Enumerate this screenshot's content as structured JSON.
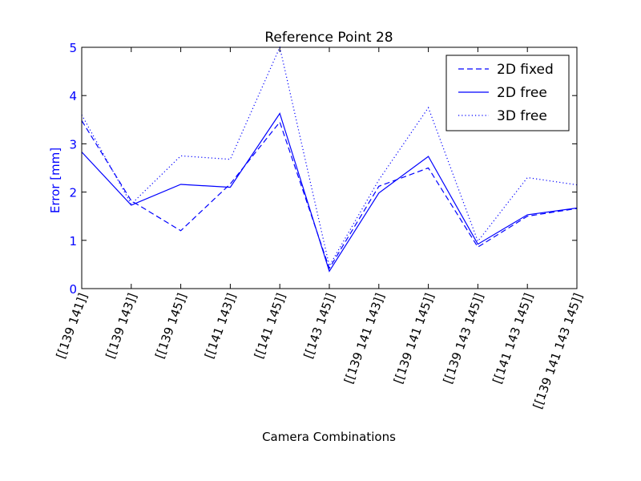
{
  "chart_data": {
    "type": "line",
    "title": "Reference Point 28",
    "xlabel": "Camera Combinations",
    "ylabel": "Error [mm]",
    "ylim": [
      0,
      5
    ],
    "yticks": [
      "0",
      "1",
      "2",
      "3",
      "4",
      "5"
    ],
    "categories": [
      "[[139 141]]",
      "[[139 143]]",
      "[[139 145]]",
      "[[141 143]]",
      "[[141 145]]",
      "[[143 145]]",
      "[[139 141 143]]",
      "[[139 141 145]]",
      "[[139 143 145]]",
      "[[141 143 145]]",
      "[[139 141 143 145]]"
    ],
    "series": [
      {
        "name": "2D fixed",
        "style": "dashed",
        "values": [
          3.48,
          1.82,
          1.2,
          2.17,
          3.45,
          0.42,
          2.12,
          2.5,
          0.86,
          1.5,
          1.66
        ]
      },
      {
        "name": "2D free",
        "style": "solid",
        "values": [
          2.83,
          1.73,
          2.16,
          2.1,
          3.63,
          0.36,
          1.98,
          2.74,
          0.92,
          1.53,
          1.67
        ]
      },
      {
        "name": "3D free",
        "style": "dotted",
        "values": [
          3.6,
          1.75,
          2.75,
          2.68,
          5.0,
          0.47,
          2.25,
          3.75,
          0.98,
          2.3,
          2.15
        ]
      }
    ],
    "legend": "top-right",
    "grid": false,
    "color": "#0000ff",
    "ylabel_color": "#0000ff",
    "ytick_color": "#0000ff"
  }
}
